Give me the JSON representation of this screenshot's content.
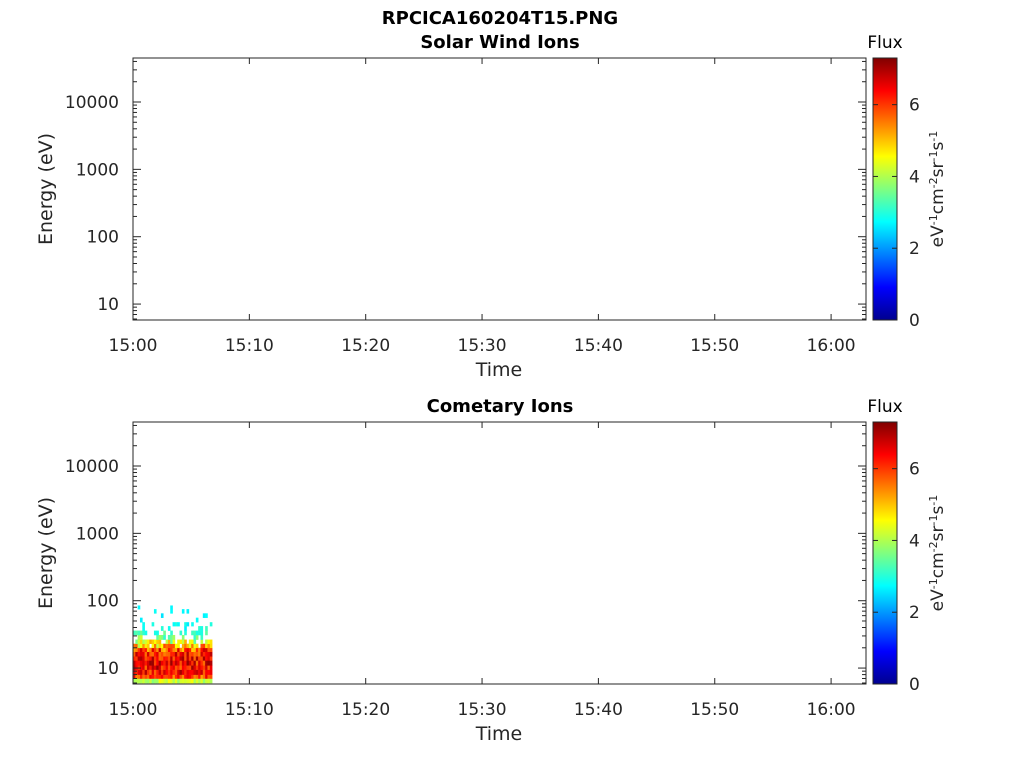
{
  "figure": {
    "title": "RPCICA160204T15.PNG"
  },
  "chart_data": [
    {
      "type": "heatmap",
      "title": "Solar Wind Ions",
      "xlabel": "Time",
      "ylabel": "Energy (eV)",
      "x_tick_labels": [
        "15:00",
        "15:10",
        "15:20",
        "15:30",
        "15:40",
        "15:50",
        "16:00"
      ],
      "x_range_minutes": [
        0,
        63
      ],
      "y_scale": "log",
      "y_range": [
        5.8,
        45000
      ],
      "y_tick_values": [
        10,
        100,
        1000,
        10000
      ],
      "y_tick_labels": [
        "10",
        "100",
        "1000",
        "10000"
      ],
      "colorbar": {
        "title": "Flux",
        "label": "eV-1cm-2sr-1s-1",
        "range": [
          0,
          7.3
        ],
        "tick_values": [
          0,
          2,
          4,
          6
        ],
        "tick_labels": [
          "0",
          "2",
          "4",
          "6"
        ],
        "colormap": "jet"
      },
      "cells": []
    },
    {
      "type": "heatmap",
      "title": "Cometary Ions",
      "xlabel": "Time",
      "ylabel": "Energy (eV)",
      "x_tick_labels": [
        "15:00",
        "15:10",
        "15:20",
        "15:30",
        "15:40",
        "15:50",
        "16:00"
      ],
      "x_range_minutes": [
        0,
        63
      ],
      "y_scale": "log",
      "y_range": [
        5.8,
        45000
      ],
      "y_tick_values": [
        10,
        100,
        1000,
        10000
      ],
      "y_tick_labels": [
        "10",
        "100",
        "1000",
        "10000"
      ],
      "colorbar": {
        "title": "Flux",
        "label": "eV-1cm-2sr-1s-1",
        "range": [
          0,
          7.3
        ],
        "tick_values": [
          0,
          2,
          4,
          6
        ],
        "tick_labels": [
          "0",
          "2",
          "4",
          "6"
        ],
        "colormap": "jet"
      },
      "data_extent": {
        "time_minutes": [
          0,
          6.8
        ],
        "energy_ev": [
          6,
          80
        ]
      },
      "energy_bins": [
        6,
        7,
        8,
        9.5,
        11,
        13,
        15,
        17.5,
        20,
        23,
        26.5,
        31,
        36,
        42,
        48,
        56,
        65,
        75,
        85
      ],
      "band_flux_range": [
        [
          3.6,
          4.6
        ],
        [
          5.2,
          6.6
        ],
        [
          5.6,
          7.1
        ],
        [
          5.6,
          7.2
        ],
        [
          5.6,
          7.2
        ],
        [
          5.6,
          7.2
        ],
        [
          5.4,
          7.1
        ],
        [
          4.8,
          6.8
        ],
        [
          4.0,
          6.0
        ],
        [
          3.4,
          5.2
        ],
        [
          3.0,
          4.4
        ],
        [
          2.8,
          3.6
        ],
        [
          2.6,
          3.2
        ],
        [
          2.6,
          3.0
        ],
        [
          2.5,
          2.9
        ],
        [
          2.5,
          2.8
        ],
        [
          2.5,
          2.8
        ],
        [
          2.5,
          2.8
        ]
      ],
      "band_fill": [
        1,
        1,
        1,
        1,
        1,
        1,
        1,
        1,
        0.9,
        0.75,
        0.55,
        0.4,
        0.28,
        0.2,
        0.14,
        0.1,
        0.07,
        0.05
      ],
      "time_bins_per_minute": 5
    }
  ]
}
